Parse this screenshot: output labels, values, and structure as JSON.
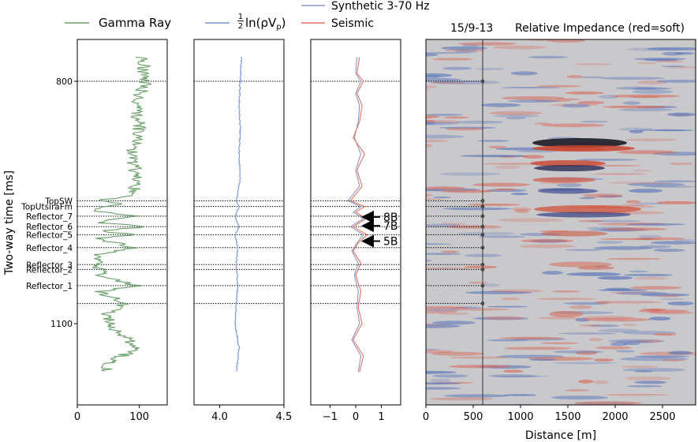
{
  "legend": {
    "gamma": "Gamma Ray",
    "imp_frac_num": "1",
    "imp_frac_den": "2",
    "imp_rest": "ln(ρV",
    "imp_sub": "p",
    "imp_close": ")",
    "synthetic": "Synthetic 3-70 Hz",
    "seismic": "Seismic"
  },
  "colors": {
    "gamma": "#6a9e6a",
    "impedance": "#7b93d6",
    "synthetic": "#8c95c8",
    "seismic": "#e8745e",
    "well_label": "#999999"
  },
  "ylabel": "Two-way time [ms]",
  "y_ticks": [
    "800",
    "1100"
  ],
  "tops": [
    {
      "name": "TopSW",
      "t": 948
    },
    {
      "name": "TopUtsiraFm",
      "t": 955
    },
    {
      "name": "Reflector_7",
      "t": 967
    },
    {
      "name": "Reflector_6",
      "t": 980
    },
    {
      "name": "Reflector_5",
      "t": 990
    },
    {
      "name": "Reflector_4",
      "t": 1006
    },
    {
      "name": "Reflector_3",
      "t": 1027
    },
    {
      "name": "Reflector_2",
      "t": 1033
    },
    {
      "name": "Reflector_1",
      "t": 1053
    },
    {
      "name": "",
      "t": 1075
    }
  ],
  "panel_ticks": {
    "gamma": [
      "0",
      "100"
    ],
    "impedance": [
      "4.0",
      "4.5"
    ],
    "seismic": [
      "−1",
      "0",
      "1"
    ],
    "section": [
      "0",
      "500",
      "1000",
      "1500",
      "2000",
      "2500"
    ]
  },
  "annotations": [
    {
      "label": "8B",
      "t": 965
    },
    {
      "label": "7B",
      "t": 976
    },
    {
      "label": "5B",
      "t": 995
    }
  ],
  "section": {
    "well_label": "15/9-13",
    "title": "Relative Impedance (red=soft)",
    "xlabel": "Distance [m]",
    "well_x": 600
  },
  "chart_data": {
    "type": "line",
    "y_axis": {
      "label": "Two-way time [ms]",
      "range": [
        1160,
        770
      ],
      "ticks": [
        800,
        1100
      ]
    },
    "panels": [
      {
        "name": "Gamma Ray",
        "xlim": [
          0,
          145
        ],
        "series": [
          {
            "name": "Gamma Ray",
            "t": [
              770,
              800,
              830,
              860,
              890,
              920,
              940,
              948,
              952,
              955,
              960,
              967,
              975,
              980,
              985,
              990,
              995,
              1006,
              1015,
              1027,
              1033,
              1040,
              1053,
              1060,
              1075,
              1090,
              1110,
              1130,
              1150,
              1160
            ],
            "values": [
              105,
              110,
              95,
              100,
              88,
              95,
              90,
              35,
              85,
              40,
              30,
              95,
              30,
              110,
              35,
              95,
              30,
              95,
              35,
              30,
              35,
              40,
              95,
              35,
              75,
              45,
              65,
              100,
              45,
              50
            ]
          }
        ]
      },
      {
        "name": "½ln(ρVp)",
        "xlim": [
          3.8,
          4.5
        ],
        "series": [
          {
            "name": "½ln(ρVp)",
            "t": [
              770,
              800,
              830,
              860,
              890,
              920,
              948,
              955,
              967,
              980,
              990,
              1006,
              1027,
              1053,
              1075,
              1100,
              1130,
              1160
            ],
            "values": [
              4.17,
              4.16,
              4.15,
              4.16,
              4.15,
              4.16,
              4.13,
              4.15,
              4.12,
              4.15,
              4.12,
              4.14,
              4.13,
              4.14,
              4.13,
              4.12,
              4.15,
              4.13
            ]
          }
        ]
      },
      {
        "name": "Seismic",
        "xlim": [
          -1.75,
          1.75
        ],
        "series": [
          {
            "name": "Synthetic 3-70 Hz",
            "t": [
              770,
              790,
              800,
              815,
              830,
              850,
              870,
              890,
              910,
              930,
              948,
              955,
              962,
              970,
              980,
              990,
              1000,
              1010,
              1025,
              1040,
              1060,
              1080,
              1100,
              1120,
              1140,
              1160
            ],
            "values": [
              0.05,
              0.0,
              0.2,
              0.0,
              0.15,
              0.1,
              -0.05,
              0.2,
              0.0,
              0.15,
              -0.3,
              0.2,
              -0.1,
              0.3,
              -0.2,
              0.3,
              0.05,
              -0.15,
              0.1,
              -0.05,
              0.1,
              0.05,
              0.15,
              -0.15,
              0.2,
              0.1
            ]
          },
          {
            "name": "Seismic",
            "t": [
              770,
              790,
              800,
              815,
              830,
              850,
              870,
              890,
              910,
              930,
              948,
              955,
              962,
              970,
              980,
              990,
              1000,
              1010,
              1025,
              1040,
              1060,
              1080,
              1100,
              1120,
              1140,
              1160
            ],
            "values": [
              0.15,
              0.05,
              0.3,
              0.05,
              0.25,
              0.15,
              -0.1,
              0.35,
              0.05,
              0.25,
              -0.2,
              0.35,
              0.0,
              0.4,
              -0.1,
              0.45,
              0.1,
              -0.1,
              0.2,
              0.0,
              0.2,
              0.1,
              0.25,
              -0.1,
              0.3,
              0.15
            ]
          }
        ]
      },
      {
        "name": "Relative Impedance (red=soft)",
        "type": "heatmap",
        "x_label": "Distance [m]",
        "xlim": [
          0,
          2850
        ]
      }
    ]
  }
}
